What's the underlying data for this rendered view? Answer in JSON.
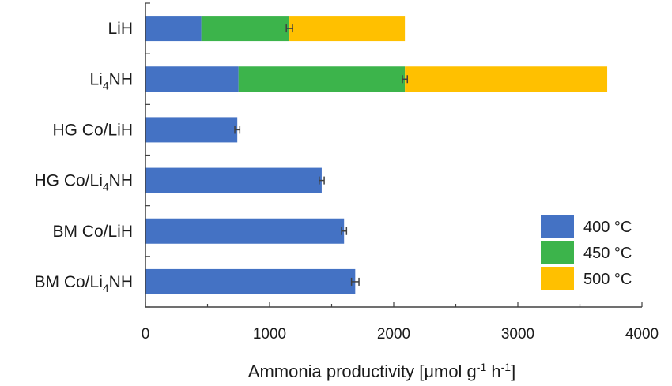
{
  "chart_data": {
    "type": "bar",
    "orientation": "horizontal",
    "stacked": true,
    "categories": [
      {
        "main": "LiH",
        "sub": "",
        "rest": ""
      },
      {
        "main": "Li",
        "sub": "4",
        "rest": "NH"
      },
      {
        "main": "HG Co/LiH",
        "sub": "",
        "rest": ""
      },
      {
        "main": "HG Co/Li",
        "sub": "4",
        "rest": "NH"
      },
      {
        "main": "BM Co/LiH",
        "sub": "",
        "rest": ""
      },
      {
        "main": "BM Co/Li",
        "sub": "4",
        "rest": "NH"
      }
    ],
    "series": [
      {
        "name": "400 °C",
        "color": "#4472C4",
        "values": [
          450,
          750,
          740,
          1420,
          1600,
          1690
        ]
      },
      {
        "name": "450 °C",
        "color": "#3CB44B",
        "values": [
          710,
          1340,
          0,
          0,
          0,
          0
        ]
      },
      {
        "name": "500 °C",
        "color": "#FFC000",
        "values": [
          930,
          1630,
          0,
          0,
          0,
          0
        ]
      }
    ],
    "error_bars": {
      "center": [
        1160,
        2090,
        740,
        1420,
        1600,
        1690
      ],
      "half_width": [
        25,
        20,
        20,
        20,
        20,
        30
      ]
    },
    "xlim": [
      0,
      4000
    ],
    "xticks": [
      "0",
      "1000",
      "2000",
      "3000",
      "4000"
    ],
    "xlabel": {
      "prefix": "Ammonia productivity [μmol g",
      "sup1": "-1",
      "mid": " h",
      "sup2": "-1",
      "suffix": "]"
    },
    "ylabel": "",
    "title": "",
    "grid": false,
    "legend": {
      "position": "bottom-right"
    }
  }
}
